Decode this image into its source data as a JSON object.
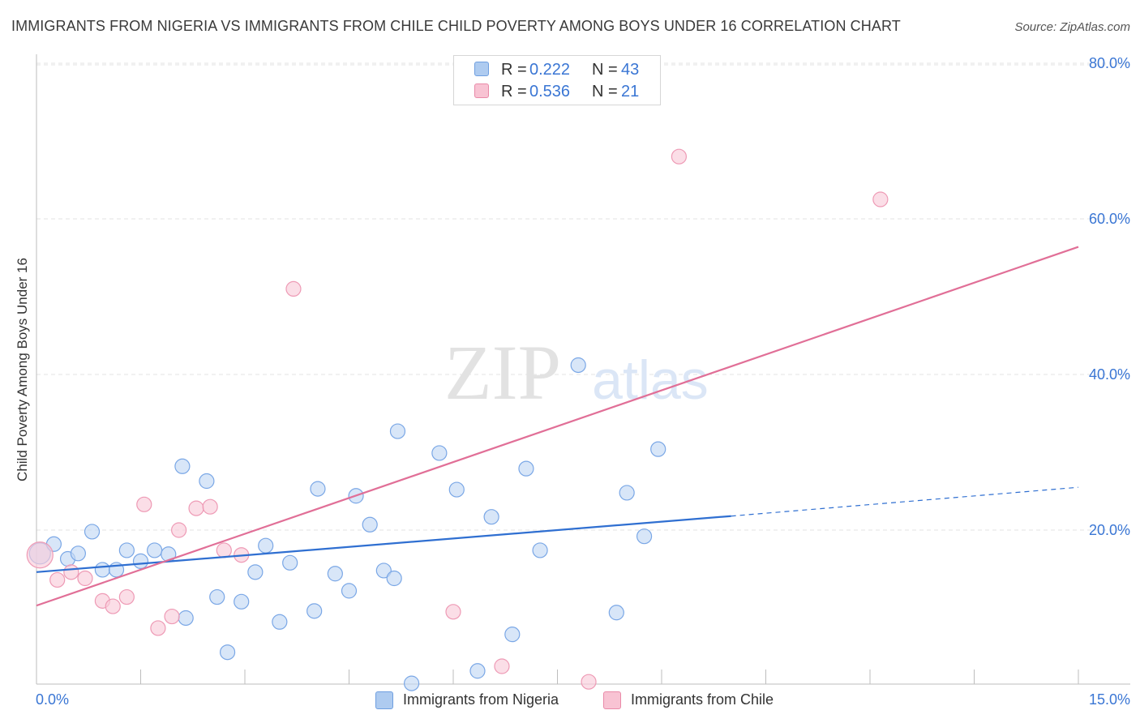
{
  "header": {
    "title": "IMMIGRANTS FROM NIGERIA VS IMMIGRANTS FROM CHILE CHILD POVERTY AMONG BOYS UNDER 16 CORRELATION CHART",
    "source": "Source: ZipAtlas.com"
  },
  "watermark": {
    "zip": "ZIP",
    "atlas": "atlas"
  },
  "legend_top": {
    "rows": [
      {
        "r_label": "R =",
        "r_value": "0.222",
        "n_label": "N =",
        "n_value": "43",
        "color": "#aecbf0",
        "border": "#6f9fe0"
      },
      {
        "r_label": "R =",
        "r_value": "0.536",
        "n_label": "N =",
        "n_value": "21",
        "color": "#f8c3d3",
        "border": "#e98aa8"
      }
    ]
  },
  "legend_bottom": {
    "items": [
      {
        "label": "Immigrants from Nigeria",
        "color": "#aecbf0",
        "border": "#6f9fe0"
      },
      {
        "label": "Immigrants from Chile",
        "color": "#f8c3d3",
        "border": "#e98aa8"
      }
    ]
  },
  "chart_data": {
    "type": "scatter",
    "title": "IMMIGRANTS FROM NIGERIA VS IMMIGRANTS FROM CHILE CHILD POVERTY AMONG BOYS UNDER 16 CORRELATION CHART",
    "xlabel": "",
    "ylabel": "Child Poverty Among Boys Under 16",
    "xlim": [
      0,
      15
    ],
    "ylim": [
      0,
      80
    ],
    "x_tick_labels": [
      "0.0%",
      "15.0%"
    ],
    "y_ticks": [
      20,
      40,
      60,
      80
    ],
    "y_tick_labels": [
      "20.0%",
      "40.0%",
      "60.0%",
      "80.0%"
    ],
    "grid": true,
    "legend_position": "top-center",
    "series": [
      {
        "name": "Immigrants from Nigeria",
        "color": "#7aa7e6",
        "fill": "#c3d8f4",
        "trend_color": "#2f6fd1",
        "r": 0.222,
        "n": 43,
        "trend": {
          "x0": 0.0,
          "y0": 14.6,
          "x1": 10.0,
          "y1": 21.8,
          "dash_x_end": 15.0,
          "dash_y_end": 25.5
        },
        "points": [
          [
            0.05,
            17.0
          ],
          [
            0.25,
            18.2
          ],
          [
            0.45,
            16.3
          ],
          [
            0.6,
            17.0
          ],
          [
            0.8,
            19.8
          ],
          [
            0.95,
            14.9
          ],
          [
            1.15,
            14.9
          ],
          [
            1.3,
            17.4
          ],
          [
            1.5,
            16.0
          ],
          [
            1.7,
            17.4
          ],
          [
            1.9,
            16.9
          ],
          [
            2.1,
            28.2
          ],
          [
            2.15,
            8.7
          ],
          [
            2.45,
            26.3
          ],
          [
            2.6,
            11.4
          ],
          [
            2.75,
            4.3
          ],
          [
            2.95,
            10.8
          ],
          [
            3.15,
            14.6
          ],
          [
            3.3,
            18.0
          ],
          [
            3.5,
            8.2
          ],
          [
            3.65,
            15.8
          ],
          [
            4.0,
            9.6
          ],
          [
            4.05,
            25.3
          ],
          [
            4.3,
            14.4
          ],
          [
            4.5,
            12.2
          ],
          [
            4.6,
            24.4
          ],
          [
            4.8,
            20.7
          ],
          [
            5.0,
            14.8
          ],
          [
            5.15,
            13.8
          ],
          [
            5.2,
            32.7
          ],
          [
            5.4,
            0.3
          ],
          [
            5.8,
            29.9
          ],
          [
            6.05,
            25.2
          ],
          [
            6.35,
            1.9
          ],
          [
            6.55,
            21.7
          ],
          [
            6.85,
            6.6
          ],
          [
            7.05,
            27.9
          ],
          [
            7.25,
            17.4
          ],
          [
            7.8,
            41.2
          ],
          [
            8.35,
            9.4
          ],
          [
            8.5,
            24.8
          ],
          [
            8.75,
            19.2
          ],
          [
            8.95,
            30.4
          ]
        ],
        "point_sizes": [
          13,
          9,
          9,
          9,
          9,
          9,
          9,
          9,
          9,
          9,
          9,
          9,
          9,
          9,
          9,
          9,
          9,
          9,
          9,
          9,
          9,
          9,
          9,
          9,
          9,
          9,
          9,
          9,
          9,
          9,
          9,
          9,
          9,
          9,
          9,
          9,
          9,
          9,
          9,
          9,
          9,
          9,
          9
        ]
      },
      {
        "name": "Immigrants from Chile",
        "color": "#ee9ab5",
        "fill": "#f9cdda",
        "trend_color": "#e16f97",
        "r": 0.536,
        "n": 21,
        "trend": {
          "x0": 0.0,
          "y0": 10.3,
          "x1": 15.0,
          "y1": 56.4
        },
        "points": [
          [
            0.05,
            16.8
          ],
          [
            0.3,
            13.6
          ],
          [
            0.5,
            14.6
          ],
          [
            0.7,
            13.8
          ],
          [
            0.95,
            10.9
          ],
          [
            1.1,
            10.2
          ],
          [
            1.3,
            11.4
          ],
          [
            1.55,
            23.3
          ],
          [
            1.75,
            7.4
          ],
          [
            1.95,
            8.9
          ],
          [
            2.05,
            20.0
          ],
          [
            2.3,
            22.8
          ],
          [
            2.5,
            23.0
          ],
          [
            2.7,
            17.4
          ],
          [
            2.95,
            16.8
          ],
          [
            3.7,
            51.0
          ],
          [
            6.0,
            9.5
          ],
          [
            6.7,
            2.5
          ],
          [
            7.95,
            0.5
          ],
          [
            9.25,
            68.0
          ],
          [
            12.15,
            62.5
          ]
        ],
        "point_sizes": [
          16,
          9,
          9,
          9,
          9,
          9,
          9,
          9,
          9,
          9,
          9,
          9,
          9,
          9,
          9,
          9,
          9,
          9,
          9,
          9,
          9
        ]
      }
    ]
  }
}
